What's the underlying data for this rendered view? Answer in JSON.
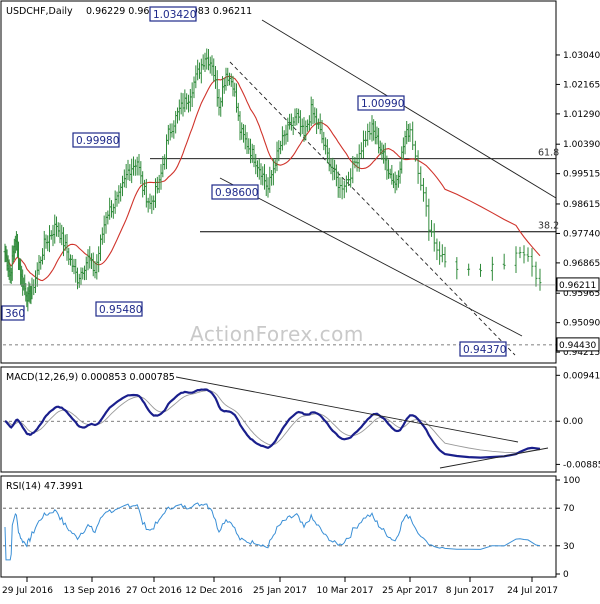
{
  "header": {
    "symbol": "USDCHF,Daily",
    "ohlc": "0.96229 0.96269 0.95983 0.96211"
  },
  "watermark": "ActionForex.com",
  "price_panel": {
    "y_ticks": [
      "1.03040",
      "1.02165",
      "1.01290",
      "1.00390",
      "0.99515",
      "0.98615",
      "0.97740",
      "0.96865",
      "0.95965",
      "0.95090",
      "0.94215"
    ],
    "last_price": "0.96211",
    "support_level": "0.94430",
    "pivot_labels": [
      {
        "text": "1.03420"
      },
      {
        "text": "1.00990"
      },
      {
        "text": "0.99980"
      },
      {
        "text": "0.98600"
      },
      {
        "text": "0.95480"
      },
      {
        "text": "0.94370"
      },
      {
        "text": "360"
      }
    ],
    "fib_levels": [
      {
        "label": "61.8",
        "price": 0.9996
      },
      {
        "label": "38.2",
        "price": 0.9779
      }
    ]
  },
  "macd_panel": {
    "title": "MACD(12,26,9) 0.000853 0.000785",
    "y_ticks": [
      "0.009411",
      "0.00",
      "-0.008852"
    ]
  },
  "rsi_panel": {
    "title": "RSI(14) 47.3991",
    "y_ticks": [
      "100",
      "70",
      "30",
      "0"
    ]
  },
  "x_ticks": [
    "29 Jul 2016",
    "13 Sep 2016",
    "27 Oct 2016",
    "12 Dec 2016",
    "25 Jan 2017",
    "10 Mar 2017",
    "25 Apr 2017",
    "8 Jun 2017",
    "24 Jul 2017"
  ],
  "colors": {
    "candles": "#2f8a3a",
    "sma": "#d0342c",
    "macd_line": "#1a1f8c",
    "macd_signal": "#9a9a9a",
    "rsi_line": "#3a8fd6",
    "label_text": "#1f2a8a"
  },
  "chart_data": {
    "type": "line",
    "title": "USDCHF,Daily",
    "price_series": [
      {
        "date": "29 Jul 2016",
        "close": 0.969
      },
      {
        "date": "13 Sep 2016",
        "close": 0.976
      },
      {
        "date": "27 Oct 2016",
        "close": 0.9905
      },
      {
        "date": "12 Dec 2016",
        "close": 1.02
      },
      {
        "date": "25 Jan 2017",
        "close": 0.9965
      },
      {
        "date": "10 Mar 2017",
        "close": 1.0085
      },
      {
        "date": "25 Apr 2017",
        "close": 0.9995
      },
      {
        "date": "8 Jun 2017",
        "close": 0.964
      },
      {
        "date": "24 Jul 2017",
        "close": 0.96
      }
    ],
    "y_range": [
      0.941,
      1.039
    ],
    "macd_range": [
      -0.01,
      0.0105
    ],
    "rsi_range": [
      0,
      100
    ],
    "grid": false
  }
}
